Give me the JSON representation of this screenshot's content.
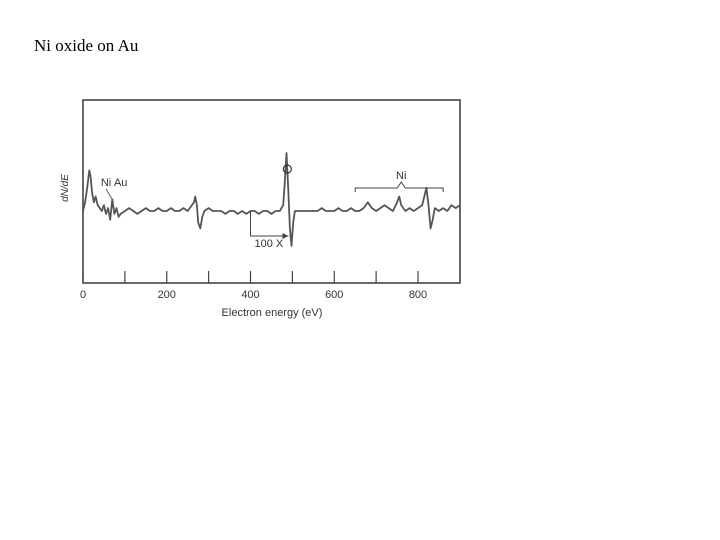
{
  "page": {
    "title": "Ni oxide on Au"
  },
  "chart_data": {
    "type": "line",
    "title": "",
    "xlabel": "Electron energy (eV)",
    "ylabel": "dN/dE",
    "xlim": [
      0,
      900
    ],
    "xticks": [
      0,
      200,
      400,
      600,
      800
    ],
    "minor_xticks": [
      100,
      300,
      500,
      700
    ],
    "grid": false,
    "line_color": "#555555",
    "series": [
      {
        "x": [
          0,
          5,
          10,
          15,
          18,
          22,
          26,
          30,
          35,
          40,
          45,
          50,
          55,
          60,
          65,
          70,
          75,
          80,
          85,
          90,
          100,
          110,
          120,
          130,
          140,
          150,
          160,
          170,
          180,
          190,
          200,
          210,
          220,
          230,
          240,
          250,
          255,
          260,
          265,
          268,
          272,
          275,
          280,
          285,
          290,
          300,
          310,
          320,
          330,
          340,
          350,
          360,
          370,
          380,
          390,
          400,
          410,
          420,
          430,
          440,
          450,
          460,
          470,
          478,
          482,
          486,
          490,
          494,
          498,
          502,
          506,
          510,
          515,
          520,
          530,
          540,
          550,
          560,
          570,
          580,
          590,
          600,
          610,
          620,
          630,
          640,
          650,
          660,
          670,
          680,
          690,
          700,
          710,
          720,
          730,
          740,
          750,
          755,
          760,
          765,
          770,
          780,
          790,
          800,
          810,
          815,
          820,
          825,
          830,
          835,
          840,
          850,
          860,
          870,
          880,
          890,
          900
        ],
        "y": [
          0,
          3,
          8,
          14,
          12,
          6,
          3,
          5,
          2,
          1,
          0,
          2,
          -1,
          1,
          -3,
          4,
          -1,
          1,
          -2,
          -1,
          0,
          1,
          0,
          -1,
          0,
          1,
          0,
          0,
          1,
          0,
          0,
          1,
          0,
          0,
          1,
          0,
          1,
          2,
          3,
          5,
          2,
          -4,
          -6,
          -2,
          0,
          1,
          0,
          0,
          0,
          -1,
          0,
          0,
          -1,
          0,
          -1,
          0,
          0,
          -1,
          0,
          0,
          -1,
          0,
          0,
          2,
          10,
          20,
          8,
          -6,
          -12,
          -4,
          0,
          0,
          0,
          0,
          0,
          0,
          0,
          0,
          1,
          0,
          0,
          0,
          1,
          0,
          0,
          1,
          0,
          0,
          1,
          3,
          1,
          0,
          1,
          2,
          1,
          0,
          3,
          5,
          2,
          1,
          0,
          1,
          0,
          1,
          2,
          5,
          8,
          2,
          -6,
          -3,
          1,
          0,
          1,
          0,
          2,
          1,
          2
        ]
      }
    ],
    "annotations": [
      {
        "text": "Ni",
        "x": 55
      },
      {
        "text": "Au",
        "x": 90
      },
      {
        "text": "O",
        "x": 488,
        "symbol": "circle"
      },
      {
        "text": "Ni",
        "x": 760,
        "bracket_from": 650,
        "bracket_to": 860
      },
      {
        "text": "100 X",
        "arrow_from": 400
      }
    ]
  }
}
